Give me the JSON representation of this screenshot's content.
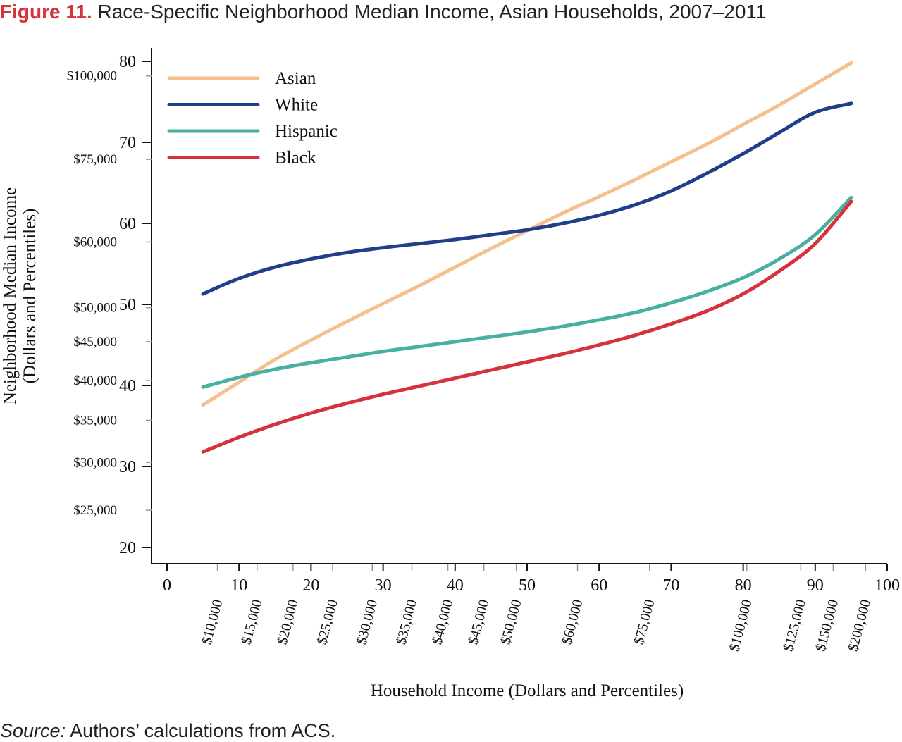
{
  "figure": {
    "label": "Figure 11.",
    "title": "Race-Specific Neighborhood Median Income, Asian Households, 2007–2011"
  },
  "source": {
    "lead": "Source:",
    "text": "Authors’ calculations from ACS."
  },
  "chart_data": {
    "type": "line",
    "xlabel": "Household Income (Dollars and Percentiles)",
    "ylabel_line1": "Neighborhood Median Income",
    "ylabel_line2": "(Dollars and Percentiles)",
    "xlim": [
      0,
      100
    ],
    "ylim": [
      20,
      80
    ],
    "x_ticks": [
      0,
      10,
      20,
      30,
      40,
      50,
      60,
      70,
      80,
      90,
      100
    ],
    "y_ticks": [
      20,
      30,
      40,
      50,
      60,
      70,
      80
    ],
    "x_dollar_ticks": [
      {
        "x": 7,
        "label": "$10,000"
      },
      {
        "x": 12.5,
        "label": "$15,000"
      },
      {
        "x": 17.5,
        "label": "$20,000"
      },
      {
        "x": 23,
        "label": "$25,000"
      },
      {
        "x": 28.5,
        "label": "$30,000"
      },
      {
        "x": 34,
        "label": "$35,000"
      },
      {
        "x": 39,
        "label": "$40,000"
      },
      {
        "x": 44,
        "label": "$45,000"
      },
      {
        "x": 48.5,
        "label": "$50,000"
      },
      {
        "x": 57,
        "label": "$60,000"
      },
      {
        "x": 67,
        "label": "$75,000"
      },
      {
        "x": 80.5,
        "label": "$100,000"
      },
      {
        "x": 88,
        "label": "$125,000"
      },
      {
        "x": 92.5,
        "label": "$150,000"
      },
      {
        "x": 97,
        "label": "$200,000"
      }
    ],
    "y_dollar_ticks": [
      {
        "y": 78.2,
        "label": "$100,000"
      },
      {
        "y": 67.9,
        "label": "$75,000"
      },
      {
        "y": 57.7,
        "label": "$60,000"
      },
      {
        "y": 49.6,
        "label": "$50,000"
      },
      {
        "y": 45.4,
        "label": "$45,000"
      },
      {
        "y": 40.6,
        "label": "$40,000"
      },
      {
        "y": 35.7,
        "label": "$35,000"
      },
      {
        "y": 30.5,
        "label": "$30,000"
      },
      {
        "y": 24.6,
        "label": "$25,000"
      }
    ],
    "x": [
      5,
      10,
      15,
      20,
      25,
      30,
      35,
      40,
      45,
      50,
      55,
      60,
      65,
      70,
      75,
      80,
      85,
      90,
      95
    ],
    "series": [
      {
        "name": "Asian",
        "color": "#f5c08e",
        "values": [
          37.6,
          40.4,
          43.2,
          45.6,
          47.9,
          50.1,
          52.3,
          54.6,
          56.9,
          59.1,
          61.3,
          63.3,
          65.4,
          67.6,
          69.8,
          72.2,
          74.6,
          77.2,
          79.8
        ]
      },
      {
        "name": "White",
        "color": "#213e8a",
        "values": [
          51.3,
          53.2,
          54.6,
          55.6,
          56.4,
          57.0,
          57.5,
          58.0,
          58.6,
          59.2,
          60.0,
          61.0,
          62.3,
          64.0,
          66.2,
          68.6,
          71.2,
          73.7,
          74.8
        ]
      },
      {
        "name": "Hispanic",
        "color": "#47b0a0",
        "values": [
          39.8,
          41.0,
          42.0,
          42.8,
          43.5,
          44.2,
          44.8,
          45.4,
          46.0,
          46.6,
          47.3,
          48.1,
          49.0,
          50.2,
          51.6,
          53.3,
          55.6,
          58.6,
          63.2
        ]
      },
      {
        "name": "Black",
        "color": "#d6323e",
        "values": [
          31.8,
          33.6,
          35.2,
          36.6,
          37.8,
          38.9,
          39.9,
          40.9,
          41.9,
          42.9,
          43.9,
          45.0,
          46.2,
          47.6,
          49.2,
          51.3,
          54.1,
          57.5,
          62.7
        ]
      }
    ],
    "legend_position": "top-left",
    "grid": false
  }
}
